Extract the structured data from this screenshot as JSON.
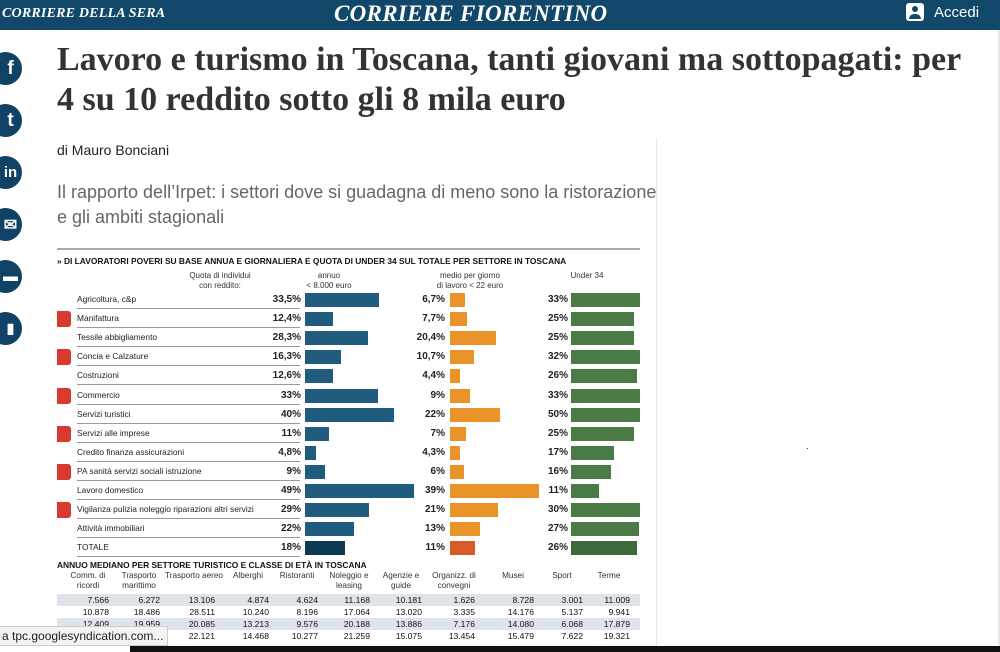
{
  "header": {
    "left_brand": "CORRIERE DELLA SERA",
    "center_brand": "CORRIERE FIORENTINO",
    "login_label": "Accedi",
    "background_color": "#11486a"
  },
  "share_icons": [
    "facebook-icon",
    "twitter-icon",
    "linkedin-icon",
    "email-icon",
    "comment-icon",
    "bookmark-icon"
  ],
  "article": {
    "title": "Lavoro e turismo in Toscana, tanti giovani ma sottopagati: per 4 su 10 reddito sotto gli 8 mila euro",
    "author": "di Mauro Bonciani",
    "subtitle": "Il rapporto dell’Irpet: i settori dove si guadagna di meno sono la ristorazione e gli ambiti stagionali",
    "stray_mark": "."
  },
  "infographic": {
    "title": "» DI LAVORATORI POVERI SU BASE ANNUA E GIORNALIERA E QUOTA DI UNDER 34 SUL TOTALE PER SETTORE IN TOSCANA",
    "headers": {
      "quota_line1": "Quota di individui",
      "quota_line2": "con reddito:",
      "annuo_line1": "annuo",
      "annuo_line2": "< 8.000 euro",
      "medio_line1": "medio per giorno",
      "medio_line2": "di lavoro < 22 euro",
      "under": "Under 34"
    },
    "colors": {
      "annuo": "#1f5c7e",
      "medio": "#e99329",
      "under": "#4a7a46"
    }
  },
  "chart_data": {
    "type": "bar",
    "categories": [
      "Agricoltura, c&p",
      "Manifattura",
      "Tessile abbigliamento",
      "Concia e Calzature",
      "Costruzioni",
      "Commercio",
      "Servizi turistici",
      "Servizi alle imprese",
      "Credito finanza assicurazioni",
      "PA sanità servizi sociali istruzione",
      "Lavoro domestico",
      "Vigilanza pulizia noleggio riparazioni altri servizi",
      "Attività immobiliari",
      "TOTALE"
    ],
    "series": [
      {
        "name": "annuo < 8.000 euro",
        "values": [
          33.5,
          12.4,
          28.3,
          16.3,
          12.6,
          33,
          40,
          11,
          4.8,
          9,
          49,
          29,
          22,
          18
        ],
        "labels": [
          "33,5%",
          "12,4%",
          "28,3%",
          "16,3%",
          "12,6%",
          "33%",
          "40%",
          "11%",
          "4,8%",
          "9%",
          "49%",
          "29%",
          "22%",
          "18%"
        ]
      },
      {
        "name": "medio per giorno di lavoro < 22 euro",
        "values": [
          6.7,
          7.7,
          20.4,
          10.7,
          4.4,
          9,
          22,
          7,
          4.3,
          6,
          39,
          21,
          13,
          11
        ],
        "labels": [
          "6,7%",
          "7,7%",
          "20,4%",
          "10,7%",
          "4,4%",
          "9%",
          "22%",
          "7%",
          "4,3%",
          "6%",
          "39%",
          "21%",
          "13%",
          "11%"
        ]
      },
      {
        "name": "Under 34",
        "values": [
          33,
          25,
          25,
          32,
          26,
          33,
          50,
          25,
          17,
          16,
          11,
          30,
          27,
          26
        ],
        "labels": [
          "33%",
          "25%",
          "25%",
          "32%",
          "26%",
          "33%",
          "50%",
          "25%",
          "17%",
          "16%",
          "11%",
          "30%",
          "27%",
          "26%"
        ]
      }
    ],
    "icon_rows": [
      1,
      3,
      5,
      7,
      9,
      11
    ]
  },
  "table2": {
    "title": "ANNUO MEDIANO PER SETTORE TURISTICO E CLASSE DI ETÀ IN TOSCANA",
    "columns": [
      "Comm. di ricordi",
      "Trasporto marittimo",
      "Trasporto aereo",
      "Alberghi",
      "Ristoranti",
      "Noleggio e leasing",
      "Agenzie e guide",
      "Organizz. di convegni",
      "Musei",
      "Sport",
      "Terme"
    ],
    "rows": [
      [
        "7.566",
        "6.272",
        "13.106",
        "4.874",
        "4.624",
        "11.168",
        "10.181",
        "1.626",
        "8.728",
        "3.001",
        "11.009"
      ],
      [
        "10.878",
        "18.486",
        "28.511",
        "10.240",
        "8.196",
        "17.064",
        "13.020",
        "3.335",
        "14.176",
        "5.137",
        "9.941"
      ],
      [
        "12.409",
        "19.959",
        "20.085",
        "13.213",
        "9.576",
        "20.188",
        "13.886",
        "7.176",
        "14.080",
        "6.068",
        "17.879"
      ],
      [
        "",
        "",
        "22.121",
        "14.468",
        "10.277",
        "21.259",
        "15.075",
        "13.454",
        "15.479",
        "7.622",
        "19.321"
      ]
    ]
  },
  "status_bar": {
    "text": "a tpc.googlesyndication.com..."
  }
}
